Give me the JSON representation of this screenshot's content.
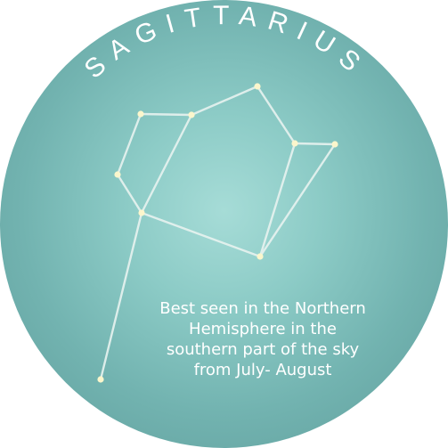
{
  "badge": {
    "title": "SAGITTARIUS",
    "caption_lines": [
      "Best seen in the Northern",
      "Hemisphere in the",
      "southern part of the sky",
      "from July- August"
    ],
    "colors": {
      "center": "#a6dcd7",
      "edge": "#5e9c9a",
      "text": "#ffffff",
      "line": "#e8f3f0",
      "star": "#fbf6cc"
    }
  }
}
